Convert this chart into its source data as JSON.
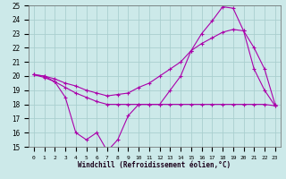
{
  "xlabel": "Windchill (Refroidissement éolien,°C)",
  "xlim": [
    -0.5,
    23.5
  ],
  "ylim": [
    15,
    25
  ],
  "yticks": [
    15,
    16,
    17,
    18,
    19,
    20,
    21,
    22,
    23,
    24,
    25
  ],
  "xticks": [
    0,
    1,
    2,
    3,
    4,
    5,
    6,
    7,
    8,
    9,
    10,
    11,
    12,
    13,
    14,
    15,
    16,
    17,
    18,
    19,
    20,
    21,
    22,
    23
  ],
  "background_color": "#cce9e9",
  "grid_color": "#aacfcf",
  "line_color": "#aa00aa",
  "line1_x": [
    0,
    1,
    2,
    3,
    4,
    5,
    6,
    7,
    8,
    9,
    10,
    11,
    12,
    13,
    14,
    15,
    16,
    17,
    18,
    19,
    20,
    21,
    22,
    23
  ],
  "line1_y": [
    20.1,
    19.9,
    19.6,
    18.5,
    16.0,
    15.5,
    16.0,
    14.7,
    15.5,
    17.2,
    18.0,
    18.0,
    18.0,
    19.0,
    20.0,
    21.8,
    23.0,
    23.9,
    24.9,
    24.8,
    23.2,
    20.5,
    19.0,
    17.9
  ],
  "line2_x": [
    0,
    1,
    2,
    3,
    4,
    5,
    6,
    7,
    8,
    9,
    10,
    11,
    12,
    13,
    14,
    15,
    16,
    17,
    18,
    19,
    20,
    21,
    22,
    23
  ],
  "line2_y": [
    20.1,
    20.0,
    19.6,
    19.2,
    18.8,
    18.5,
    18.2,
    18.0,
    18.0,
    18.0,
    18.0,
    18.0,
    18.0,
    18.0,
    18.0,
    18.0,
    18.0,
    18.0,
    18.0,
    18.0,
    18.0,
    18.0,
    18.0,
    17.9
  ],
  "line3_x": [
    0,
    1,
    2,
    3,
    4,
    5,
    6,
    7,
    8,
    9,
    10,
    11,
    12,
    13,
    14,
    15,
    16,
    17,
    18,
    19,
    20,
    21,
    22,
    23
  ],
  "line3_y": [
    20.1,
    20.0,
    19.8,
    19.5,
    19.3,
    19.0,
    18.8,
    18.6,
    18.7,
    18.8,
    19.2,
    19.5,
    20.0,
    20.5,
    21.0,
    21.8,
    22.3,
    22.7,
    23.1,
    23.3,
    23.2,
    22.0,
    20.5,
    18.0
  ]
}
